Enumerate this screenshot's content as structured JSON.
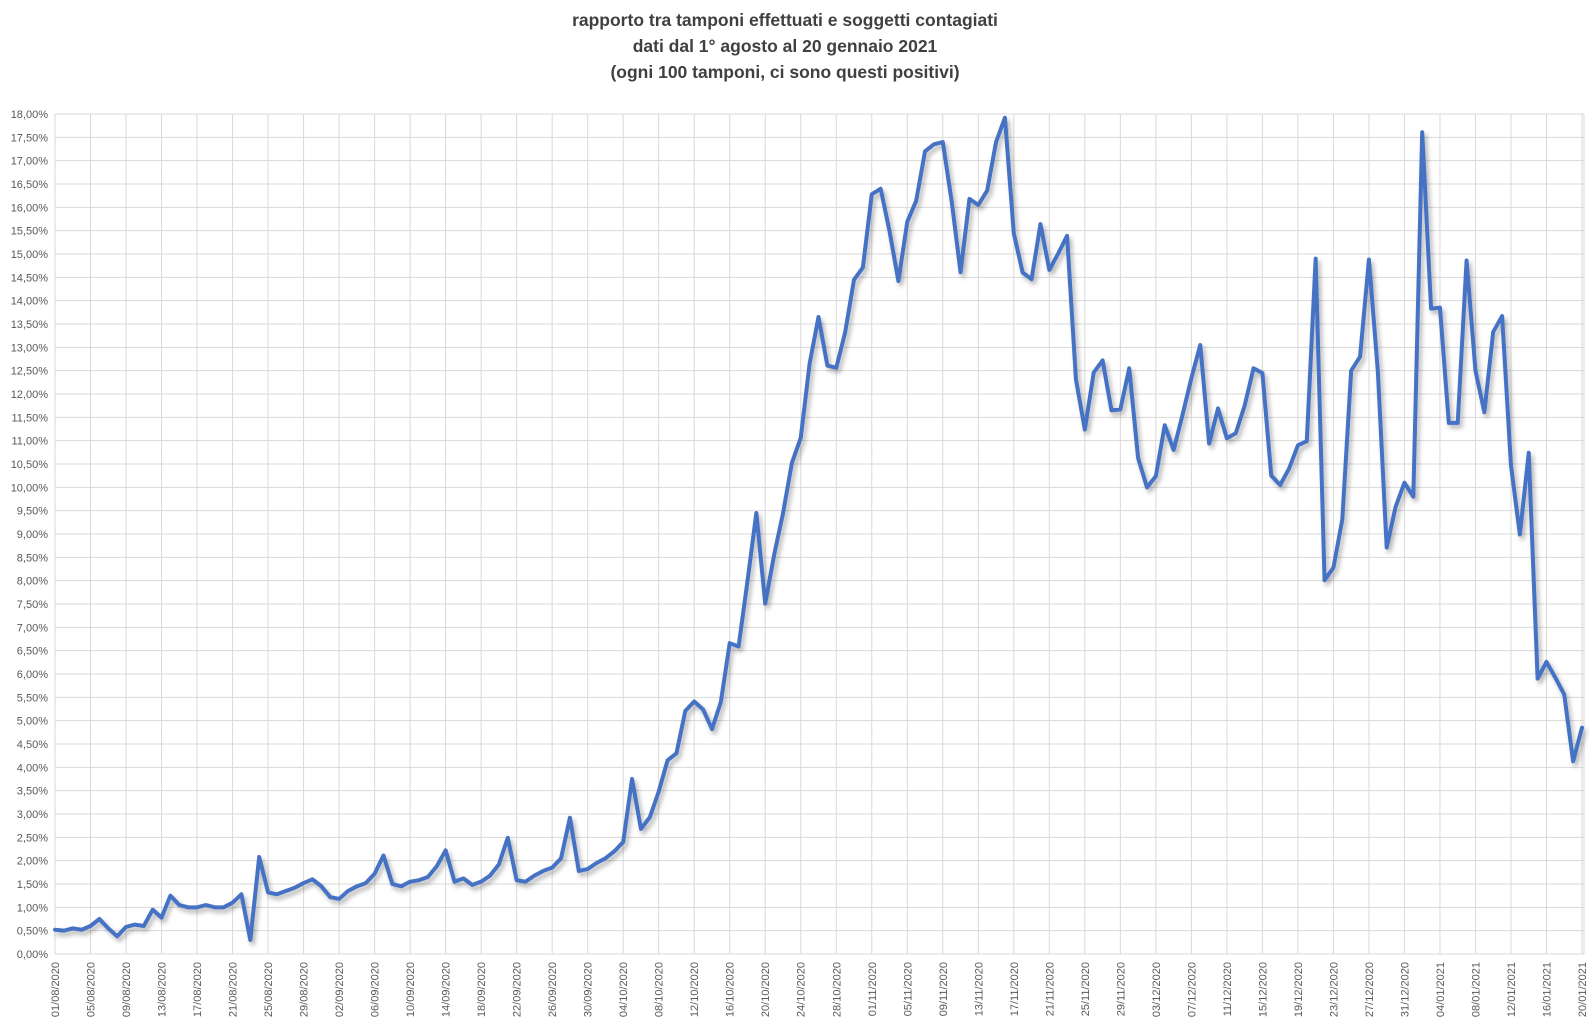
{
  "title": {
    "line1": "rapporto tra tamponi effettuati e soggetti contagiati",
    "line2": "dati dal 1° agosto al 20 gennaio 2021",
    "line3": "(ogni 100 tamponi, ci sono questi positivi)"
  },
  "chart_data": {
    "type": "line",
    "title": "rapporto tra tamponi effettuati e soggetti contagiati",
    "subtitle": "dati dal 1° agosto al 20 gennaio 2021",
    "note": "(ogni 100 tamponi, ci sono questi positivi)",
    "x_start": "01/08/2020",
    "x_end": "20/01/2021",
    "frequency": "daily",
    "ylim": [
      0,
      18
    ],
    "y_tick_step": 0.5,
    "grid": true,
    "legend_position": "none",
    "x_tick_labels": [
      "01/08/2020",
      "05/08/2020",
      "09/08/2020",
      "13/08/2020",
      "17/08/2020",
      "21/08/2020",
      "25/08/2020",
      "29/08/2020",
      "02/09/2020",
      "06/09/2020",
      "10/09/2020",
      "14/09/2020",
      "18/09/2020",
      "22/09/2020",
      "26/09/2020",
      "30/09/2020",
      "04/10/2020",
      "08/10/2020",
      "12/10/2020",
      "16/10/2020",
      "20/10/2020",
      "24/10/2020",
      "28/10/2020",
      "01/11/2020",
      "05/11/2020",
      "09/11/2020",
      "13/11/2020",
      "17/11/2020",
      "21/11/2020",
      "25/11/2020",
      "29/11/2020",
      "03/12/2020",
      "07/12/2020",
      "11/12/2020",
      "15/12/2020",
      "19/12/2020",
      "23/12/2020",
      "27/12/2020",
      "31/12/2020",
      "04/01/2021",
      "08/01/2021",
      "12/01/2021",
      "16/01/2021",
      "20/01/2021"
    ],
    "y_tick_labels": [
      "0,00%",
      "0,50%",
      "1,00%",
      "1,50%",
      "2,00%",
      "2,50%",
      "3,00%",
      "3,50%",
      "4,00%",
      "4,50%",
      "5,00%",
      "5,50%",
      "6,00%",
      "6,50%",
      "7,00%",
      "7,50%",
      "8,00%",
      "8,50%",
      "9,00%",
      "9,50%",
      "10,00%",
      "10,50%",
      "11,00%",
      "11,50%",
      "12,00%",
      "12,50%",
      "13,00%",
      "13,50%",
      "14,00%",
      "14,50%",
      "15,00%",
      "15,50%",
      "16,00%",
      "16,50%",
      "17,00%",
      "17,50%",
      "18,00%"
    ],
    "values": [
      0.52,
      0.5,
      0.55,
      0.52,
      0.6,
      0.75,
      0.55,
      0.38,
      0.58,
      0.63,
      0.6,
      0.95,
      0.78,
      1.25,
      1.05,
      1.0,
      1.0,
      1.05,
      1.0,
      1.0,
      1.1,
      1.28,
      0.3,
      2.08,
      1.32,
      1.28,
      1.35,
      1.42,
      1.52,
      1.6,
      1.45,
      1.22,
      1.18,
      1.35,
      1.45,
      1.52,
      1.72,
      2.11,
      1.5,
      1.45,
      1.55,
      1.58,
      1.65,
      1.88,
      2.22,
      1.55,
      1.62,
      1.48,
      1.55,
      1.68,
      1.92,
      2.49,
      1.58,
      1.55,
      1.68,
      1.78,
      1.85,
      2.05,
      2.92,
      1.78,
      1.82,
      1.95,
      2.05,
      2.2,
      2.4,
      3.75,
      2.68,
      2.93,
      3.48,
      4.15,
      4.3,
      5.21,
      5.41,
      5.24,
      4.82,
      5.4,
      6.66,
      6.59,
      7.99,
      9.45,
      7.51,
      8.55,
      9.44,
      10.52,
      11.06,
      12.65,
      13.65,
      12.61,
      12.56,
      13.32,
      14.45,
      14.71,
      16.28,
      16.4,
      15.49,
      14.42,
      15.69,
      16.14,
      17.2,
      17.35,
      17.4,
      16.13,
      14.61,
      16.18,
      16.05,
      16.36,
      17.4,
      17.92,
      15.44,
      14.6,
      14.46,
      15.64,
      14.66,
      15.01,
      15.39,
      12.31,
      11.24,
      12.46,
      12.72,
      11.65,
      11.67,
      12.55,
      10.63,
      10.0,
      10.24,
      11.33,
      10.8,
      11.55,
      12.34,
      13.05,
      10.94,
      11.69,
      11.05,
      11.16,
      11.75,
      12.55,
      12.45,
      10.25,
      10.05,
      10.4,
      10.9,
      10.99,
      14.9,
      8.01,
      8.28,
      9.31,
      12.5,
      12.8,
      14.88,
      12.5,
      8.71,
      9.58,
      10.1,
      9.8,
      17.61,
      13.83,
      13.85,
      11.38,
      11.38,
      14.86,
      12.5,
      11.61,
      13.33,
      13.67,
      10.47,
      8.99,
      10.74,
      5.9,
      6.26,
      5.92,
      5.56,
      4.13,
      4.85
    ],
    "colors": {
      "line": "#4472C4",
      "grid": "#D9D9D9",
      "tick_text": "#595959",
      "title_text": "#404040",
      "background": "#FFFFFF"
    }
  }
}
